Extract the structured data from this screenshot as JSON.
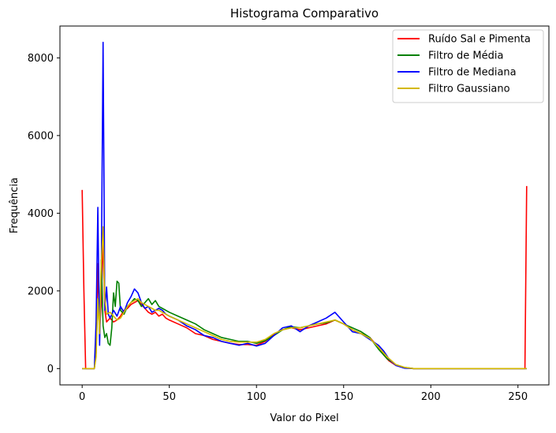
{
  "chart_data": {
    "type": "line",
    "title": "Histograma Comparativo",
    "xlabel": "Valor do Pixel",
    "ylabel": "Frequência",
    "xlim": [
      -12.75,
      267.75
    ],
    "ylim": [
      -420,
      8820
    ],
    "xticks": [
      0,
      50,
      100,
      150,
      200,
      250
    ],
    "yticks": [
      0,
      2000,
      4000,
      6000,
      8000
    ],
    "grid": false,
    "legend_position": "top-right",
    "series": [
      {
        "name": "Ruído Sal e Pimenta",
        "color": "#ff0000",
        "points": [
          [
            0,
            4600
          ],
          [
            1,
            2000
          ],
          [
            2,
            0
          ],
          [
            7,
            0
          ],
          [
            8,
            400
          ],
          [
            9,
            2700
          ],
          [
            10,
            1000
          ],
          [
            11,
            1700
          ],
          [
            12,
            3400
          ],
          [
            13,
            1500
          ],
          [
            14,
            1200
          ],
          [
            16,
            1300
          ],
          [
            18,
            1200
          ],
          [
            20,
            1250
          ],
          [
            22,
            1350
          ],
          [
            24,
            1500
          ],
          [
            26,
            1550
          ],
          [
            28,
            1650
          ],
          [
            30,
            1700
          ],
          [
            32,
            1750
          ],
          [
            34,
            1650
          ],
          [
            36,
            1550
          ],
          [
            38,
            1450
          ],
          [
            40,
            1400
          ],
          [
            42,
            1450
          ],
          [
            44,
            1350
          ],
          [
            46,
            1400
          ],
          [
            48,
            1300
          ],
          [
            50,
            1250
          ],
          [
            55,
            1150
          ],
          [
            60,
            1050
          ],
          [
            65,
            900
          ],
          [
            70,
            850
          ],
          [
            75,
            750
          ],
          [
            80,
            700
          ],
          [
            85,
            650
          ],
          [
            90,
            620
          ],
          [
            95,
            620
          ],
          [
            100,
            600
          ],
          [
            105,
            700
          ],
          [
            110,
            880
          ],
          [
            115,
            1000
          ],
          [
            120,
            1050
          ],
          [
            125,
            1000
          ],
          [
            130,
            1050
          ],
          [
            135,
            1100
          ],
          [
            140,
            1150
          ],
          [
            145,
            1250
          ],
          [
            150,
            1150
          ],
          [
            155,
            1000
          ],
          [
            160,
            900
          ],
          [
            165,
            800
          ],
          [
            170,
            550
          ],
          [
            173,
            350
          ],
          [
            176,
            200
          ],
          [
            180,
            80
          ],
          [
            185,
            20
          ],
          [
            190,
            0
          ],
          [
            250,
            0
          ],
          [
            254,
            0
          ],
          [
            255,
            4700
          ]
        ]
      },
      {
        "name": "Filtro de Média",
        "color": "#008000",
        "points": [
          [
            0,
            0
          ],
          [
            7,
            0
          ],
          [
            8,
            500
          ],
          [
            9,
            1700
          ],
          [
            10,
            1100
          ],
          [
            11,
            2800
          ],
          [
            12,
            1100
          ],
          [
            13,
            800
          ],
          [
            14,
            900
          ],
          [
            15,
            650
          ],
          [
            16,
            600
          ],
          [
            17,
            1050
          ],
          [
            18,
            1950
          ],
          [
            19,
            1600
          ],
          [
            20,
            2250
          ],
          [
            21,
            2200
          ],
          [
            22,
            1500
          ],
          [
            24,
            1400
          ],
          [
            26,
            1600
          ],
          [
            28,
            1700
          ],
          [
            30,
            1800
          ],
          [
            32,
            1750
          ],
          [
            34,
            1600
          ],
          [
            36,
            1700
          ],
          [
            38,
            1800
          ],
          [
            40,
            1650
          ],
          [
            42,
            1750
          ],
          [
            44,
            1600
          ],
          [
            46,
            1550
          ],
          [
            50,
            1450
          ],
          [
            55,
            1350
          ],
          [
            60,
            1250
          ],
          [
            65,
            1150
          ],
          [
            70,
            1000
          ],
          [
            75,
            900
          ],
          [
            80,
            800
          ],
          [
            85,
            750
          ],
          [
            90,
            700
          ],
          [
            95,
            700
          ],
          [
            100,
            650
          ],
          [
            105,
            720
          ],
          [
            110,
            850
          ],
          [
            115,
            1000
          ],
          [
            120,
            1080
          ],
          [
            125,
            1050
          ],
          [
            130,
            1100
          ],
          [
            135,
            1150
          ],
          [
            140,
            1180
          ],
          [
            145,
            1250
          ],
          [
            150,
            1150
          ],
          [
            155,
            1050
          ],
          [
            160,
            950
          ],
          [
            165,
            800
          ],
          [
            170,
            500
          ],
          [
            175,
            250
          ],
          [
            180,
            100
          ],
          [
            185,
            30
          ],
          [
            190,
            0
          ],
          [
            255,
            0
          ]
        ]
      },
      {
        "name": "Filtro de Mediana",
        "color": "#0000ff",
        "points": [
          [
            0,
            0
          ],
          [
            7,
            0
          ],
          [
            8,
            1200
          ],
          [
            9,
            4150
          ],
          [
            10,
            600
          ],
          [
            11,
            2500
          ],
          [
            12,
            8400
          ],
          [
            13,
            1500
          ],
          [
            14,
            2100
          ],
          [
            15,
            1400
          ],
          [
            16,
            1300
          ],
          [
            18,
            1500
          ],
          [
            20,
            1350
          ],
          [
            22,
            1600
          ],
          [
            24,
            1450
          ],
          [
            26,
            1700
          ],
          [
            28,
            1850
          ],
          [
            30,
            2050
          ],
          [
            32,
            1950
          ],
          [
            34,
            1700
          ],
          [
            36,
            1550
          ],
          [
            38,
            1600
          ],
          [
            40,
            1450
          ],
          [
            42,
            1500
          ],
          [
            44,
            1550
          ],
          [
            46,
            1500
          ],
          [
            48,
            1400
          ],
          [
            50,
            1350
          ],
          [
            55,
            1250
          ],
          [
            60,
            1100
          ],
          [
            65,
            1000
          ],
          [
            70,
            850
          ],
          [
            75,
            800
          ],
          [
            80,
            700
          ],
          [
            85,
            650
          ],
          [
            90,
            600
          ],
          [
            95,
            650
          ],
          [
            100,
            580
          ],
          [
            105,
            650
          ],
          [
            110,
            850
          ],
          [
            115,
            1050
          ],
          [
            120,
            1100
          ],
          [
            125,
            950
          ],
          [
            130,
            1100
          ],
          [
            135,
            1200
          ],
          [
            140,
            1300
          ],
          [
            145,
            1450
          ],
          [
            150,
            1200
          ],
          [
            155,
            950
          ],
          [
            160,
            900
          ],
          [
            165,
            750
          ],
          [
            170,
            600
          ],
          [
            173,
            450
          ],
          [
            176,
            250
          ],
          [
            180,
            80
          ],
          [
            185,
            10
          ],
          [
            190,
            0
          ],
          [
            255,
            0
          ]
        ]
      },
      {
        "name": "Filtro Gaussiano",
        "color": "#d4b800",
        "points": [
          [
            0,
            0
          ],
          [
            7,
            0
          ],
          [
            8,
            300
          ],
          [
            9,
            1800
          ],
          [
            10,
            900
          ],
          [
            11,
            2700
          ],
          [
            12,
            3650
          ],
          [
            13,
            1800
          ],
          [
            14,
            1400
          ],
          [
            16,
            1450
          ],
          [
            18,
            1350
          ],
          [
            20,
            1250
          ],
          [
            22,
            1300
          ],
          [
            24,
            1450
          ],
          [
            26,
            1600
          ],
          [
            28,
            1700
          ],
          [
            30,
            1750
          ],
          [
            32,
            1800
          ],
          [
            34,
            1700
          ],
          [
            36,
            1650
          ],
          [
            38,
            1600
          ],
          [
            40,
            1550
          ],
          [
            42,
            1500
          ],
          [
            44,
            1500
          ],
          [
            46,
            1450
          ],
          [
            50,
            1350
          ],
          [
            55,
            1250
          ],
          [
            60,
            1150
          ],
          [
            65,
            1050
          ],
          [
            70,
            950
          ],
          [
            75,
            850
          ],
          [
            80,
            750
          ],
          [
            85,
            700
          ],
          [
            90,
            680
          ],
          [
            95,
            680
          ],
          [
            100,
            680
          ],
          [
            105,
            750
          ],
          [
            110,
            900
          ],
          [
            115,
            1000
          ],
          [
            120,
            1050
          ],
          [
            125,
            1050
          ],
          [
            130,
            1100
          ],
          [
            135,
            1150
          ],
          [
            140,
            1200
          ],
          [
            145,
            1250
          ],
          [
            150,
            1150
          ],
          [
            155,
            1000
          ],
          [
            160,
            900
          ],
          [
            165,
            780
          ],
          [
            170,
            550
          ],
          [
            175,
            300
          ],
          [
            180,
            100
          ],
          [
            185,
            30
          ],
          [
            190,
            0
          ],
          [
            255,
            0
          ]
        ]
      }
    ]
  }
}
